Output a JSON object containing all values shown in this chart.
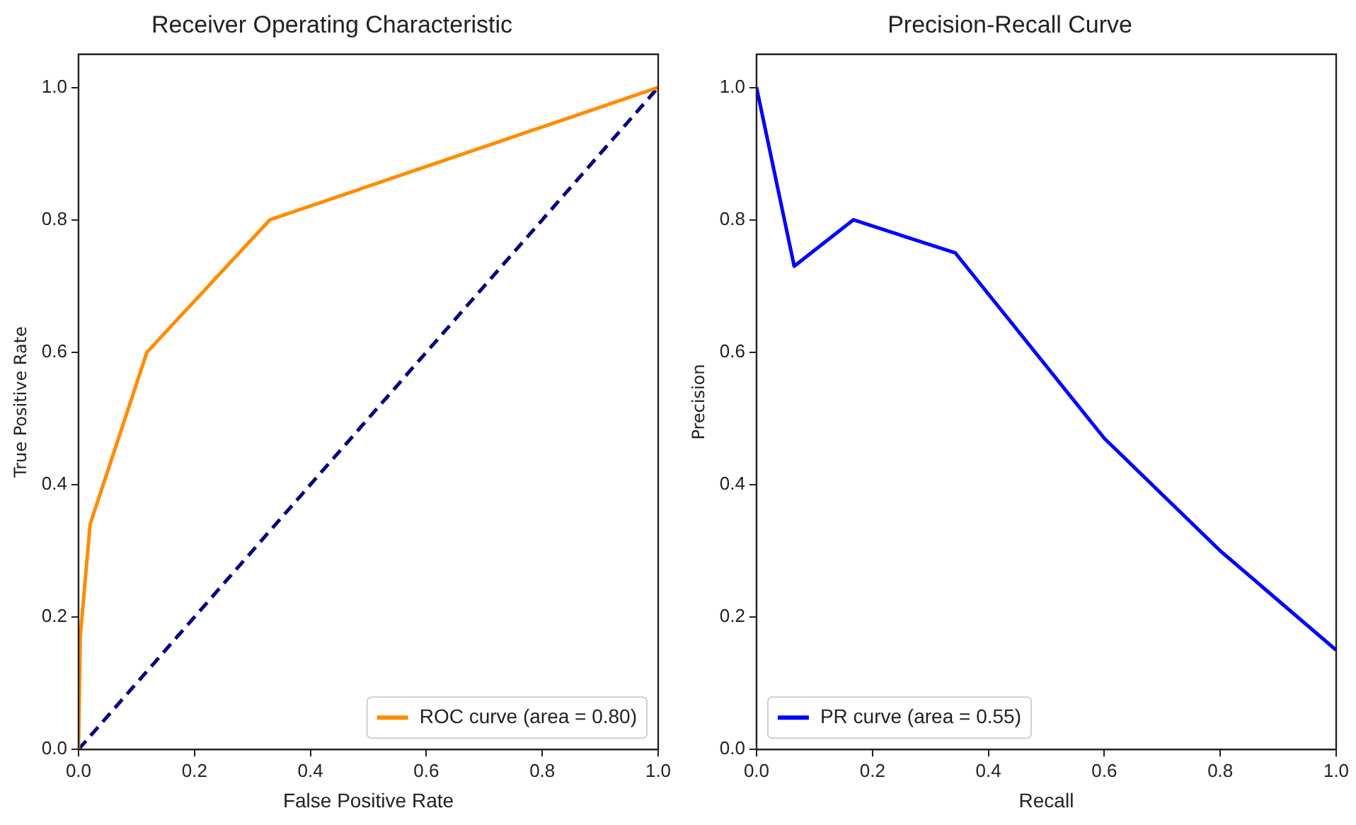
{
  "chart_data": [
    {
      "type": "line",
      "title": "Receiver Operating Characteristic",
      "xlabel": "False Positive Rate",
      "ylabel": "True Positive Rate",
      "xlim": [
        0,
        1
      ],
      "ylim": [
        0,
        1.05
      ],
      "xticks": [
        {
          "value": 0,
          "label": "0.0"
        },
        {
          "value": 0.2,
          "label": "0.2"
        },
        {
          "value": 0.4,
          "label": "0.4"
        },
        {
          "value": 0.6,
          "label": "0.6"
        },
        {
          "value": 0.8,
          "label": "0.8"
        },
        {
          "value": 1,
          "label": "1.0"
        }
      ],
      "yticks": [
        {
          "value": 0,
          "label": "0.0"
        },
        {
          "value": 0.2,
          "label": "0.2"
        },
        {
          "value": 0.4,
          "label": "0.4"
        },
        {
          "value": 0.6,
          "label": "0.6"
        },
        {
          "value": 0.8,
          "label": "0.8"
        },
        {
          "value": 1,
          "label": "1.0"
        }
      ],
      "series": [
        {
          "name": "ROC curve (area = 0.80)",
          "color": "#ff8c00",
          "x": [
            0,
            0.003,
            0.02,
            0.118,
            0.33,
            1
          ],
          "values": [
            0,
            0.17,
            0.34,
            0.6,
            0.8,
            1
          ],
          "line_style": "solid"
        },
        {
          "color": "#000080",
          "x": [
            0,
            1
          ],
          "values": [
            0,
            1
          ],
          "line_style": "dashed"
        }
      ],
      "legend": "bottom right",
      "grid": false,
      "marker": "none"
    },
    {
      "type": "line",
      "title": "Precision-Recall Curve",
      "xlabel": "Recall",
      "ylabel": "Precision",
      "xlim": [
        0,
        1
      ],
      "ylim": [
        0,
        1.05
      ],
      "xticks": [
        {
          "value": 0,
          "label": "0.0"
        },
        {
          "value": 0.2,
          "label": "0.2"
        },
        {
          "value": 0.4,
          "label": "0.4"
        },
        {
          "value": 0.6,
          "label": "0.6"
        },
        {
          "value": 0.8,
          "label": "0.8"
        },
        {
          "value": 1,
          "label": "1.0"
        }
      ],
      "yticks": [
        {
          "value": 0,
          "label": "0.0"
        },
        {
          "value": 0.2,
          "label": "0.2"
        },
        {
          "value": 0.4,
          "label": "0.4"
        },
        {
          "value": 0.6,
          "label": "0.6"
        },
        {
          "value": 0.8,
          "label": "0.8"
        },
        {
          "value": 1,
          "label": "1.0"
        }
      ],
      "series": [
        {
          "name": "PR curve (area = 0.55)",
          "color": "#0000ff",
          "x": [
            0,
            0.065,
            0.167,
            0.343,
            0.6,
            0.8,
            1
          ],
          "values": [
            1,
            0.73,
            0.8,
            0.75,
            0.47,
            0.3,
            0.15
          ],
          "line_style": "solid"
        }
      ],
      "legend": "bottom left",
      "grid": false,
      "marker": "none"
    }
  ]
}
